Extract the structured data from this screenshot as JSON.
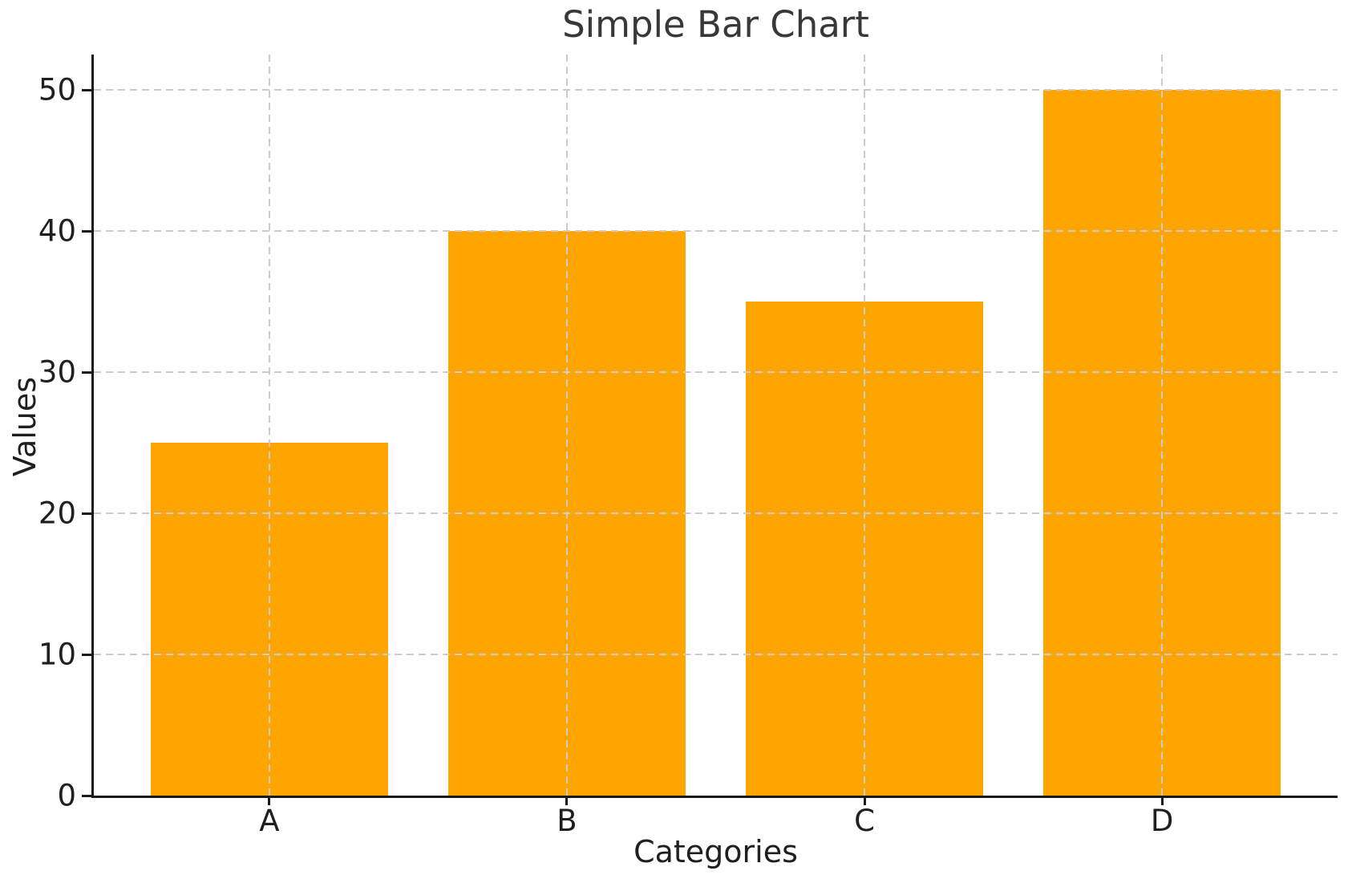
{
  "chart_data": {
    "type": "bar",
    "title": "Simple Bar Chart",
    "xlabel": "Categories",
    "ylabel": "Values",
    "categories": [
      "A",
      "B",
      "C",
      "D"
    ],
    "values": [
      25,
      40,
      35,
      50
    ],
    "yticks": [
      0,
      10,
      20,
      30,
      40,
      50
    ],
    "ylim": [
      0,
      52.5
    ],
    "bar_color": "#FFA500",
    "grid": "dashed",
    "grid_on": true,
    "grid_color": "#cccccc",
    "spine_color": "#1a1a1a",
    "text_color": "#1f1f1f",
    "background": "#ffffff",
    "legend_position": "none"
  }
}
